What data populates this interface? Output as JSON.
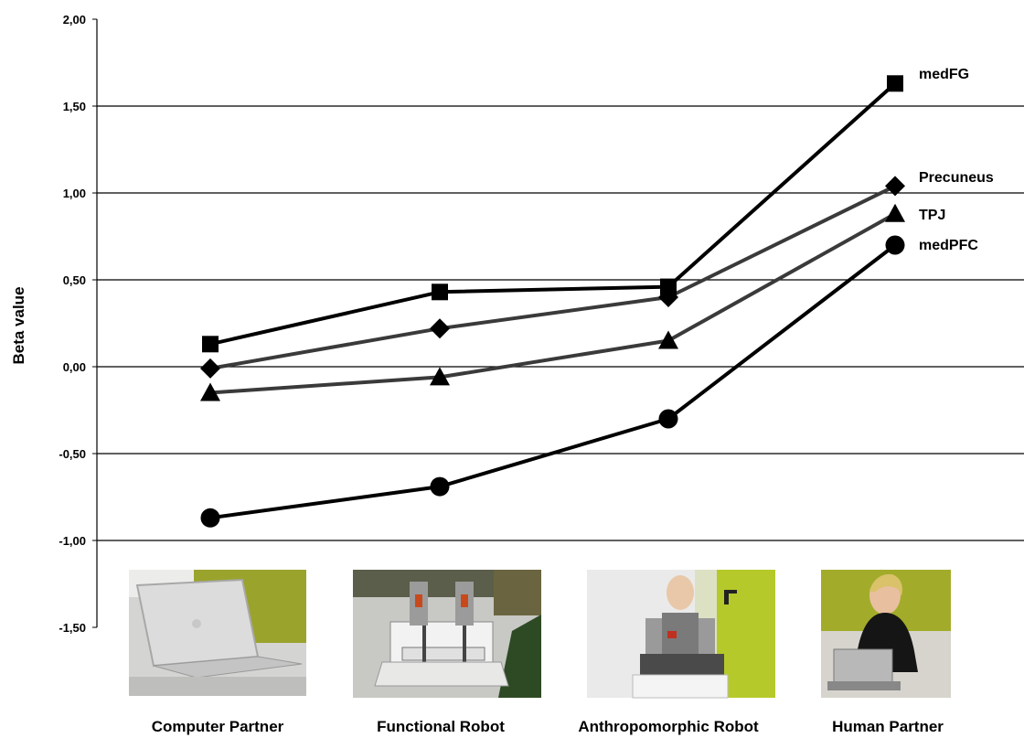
{
  "chart_data": {
    "type": "line",
    "ylabel": "Beta value",
    "ylim": [
      -1.5,
      2.0
    ],
    "yticks": [
      "2,00",
      "1,50",
      "1,00",
      "0,50",
      "0,00",
      "-0,50",
      "-1,00",
      "-1,50"
    ],
    "grid": true,
    "categories": [
      "Computer Partner",
      "Functional Robot",
      "Anthropomorphic Robot",
      "Human Partner"
    ],
    "series": [
      {
        "name": "medFG",
        "marker": "square",
        "color": "#000000",
        "values": [
          0.13,
          0.43,
          0.46,
          1.63
        ]
      },
      {
        "name": "Precuneus",
        "marker": "diamond",
        "color": "#3a3a3a",
        "values": [
          -0.01,
          0.22,
          0.4,
          1.04
        ]
      },
      {
        "name": "TPJ",
        "marker": "triangle",
        "color": "#3a3a3a",
        "values": [
          -0.15,
          -0.06,
          0.15,
          0.88
        ]
      },
      {
        "name": "medPFC",
        "marker": "circle",
        "color": "#000000",
        "values": [
          -0.87,
          -0.69,
          -0.3,
          0.7
        ]
      }
    ],
    "legend": "end-of-line labels"
  },
  "images": [
    {
      "icon": "laptop-photo"
    },
    {
      "icon": "functional-robot-photo"
    },
    {
      "icon": "humanoid-robot-photo"
    },
    {
      "icon": "human-partner-photo"
    }
  ]
}
